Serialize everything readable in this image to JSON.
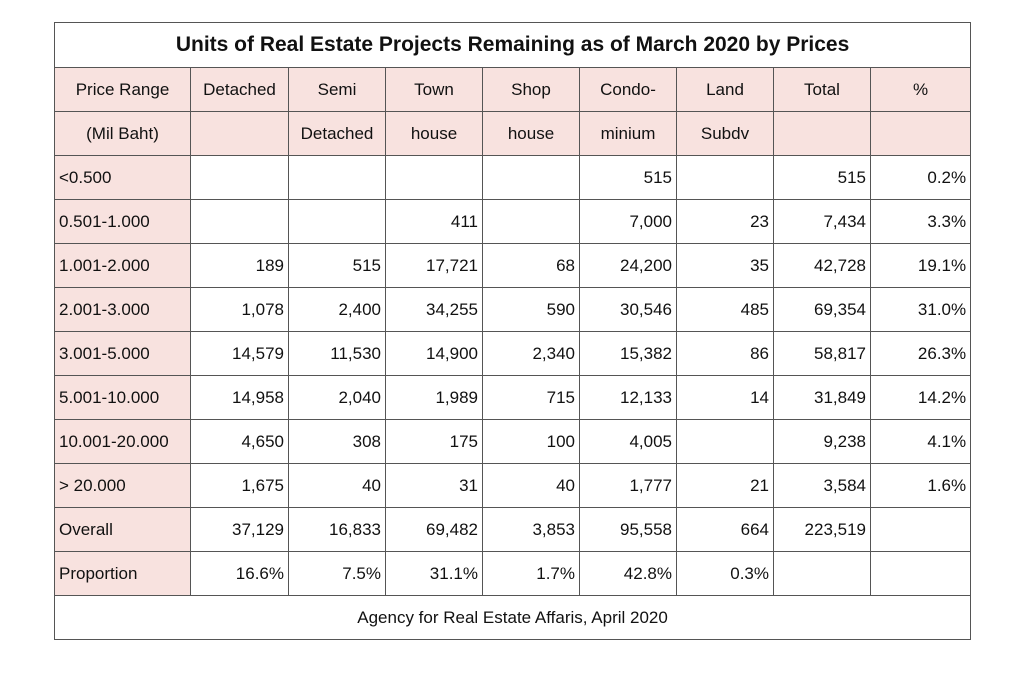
{
  "chart_data": {
    "type": "table",
    "title": "Units of Real Estate Projects Remaining as of March 2020 by Prices",
    "header_top": [
      "Price Range",
      "Detached",
      "Semi",
      "Town",
      "Shop",
      "Condo-",
      "Land",
      "Total",
      "%"
    ],
    "header_bottom": [
      "(Mil Baht)",
      "",
      "Detached",
      "house",
      "house",
      "minium",
      "Subdv",
      "",
      ""
    ],
    "rows": [
      [
        "<0.500",
        "",
        "",
        "",
        "",
        "515",
        "",
        "515",
        "0.2%"
      ],
      [
        "0.501-1.000",
        "",
        "",
        "411",
        "",
        "7,000",
        "23",
        "7,434",
        "3.3%"
      ],
      [
        "1.001-2.000",
        "189",
        "515",
        "17,721",
        "68",
        "24,200",
        "35",
        "42,728",
        "19.1%"
      ],
      [
        "2.001-3.000",
        "1,078",
        "2,400",
        "34,255",
        "590",
        "30,546",
        "485",
        "69,354",
        "31.0%"
      ],
      [
        "3.001-5.000",
        "14,579",
        "11,530",
        "14,900",
        "2,340",
        "15,382",
        "86",
        "58,817",
        "26.3%"
      ],
      [
        "5.001-10.000",
        "14,958",
        "2,040",
        "1,989",
        "715",
        "12,133",
        "14",
        "31,849",
        "14.2%"
      ],
      [
        "10.001-20.000",
        "4,650",
        "308",
        "175",
        "100",
        "4,005",
        "",
        "9,238",
        "4.1%"
      ],
      [
        "> 20.000",
        "1,675",
        "40",
        "31",
        "40",
        "1,777",
        "21",
        "3,584",
        "1.6%"
      ],
      [
        "Overall",
        "37,129",
        "16,833",
        "69,482",
        "3,853",
        "95,558",
        "664",
        "223,519",
        ""
      ],
      [
        "Proportion",
        "16.6%",
        "7.5%",
        "31.1%",
        "1.7%",
        "42.8%",
        "0.3%",
        "",
        ""
      ]
    ],
    "footer": "Agency for Real Estate Affaris, April 2020"
  },
  "colors": {
    "header_bg": "#f8e2df",
    "border": "#555555"
  }
}
